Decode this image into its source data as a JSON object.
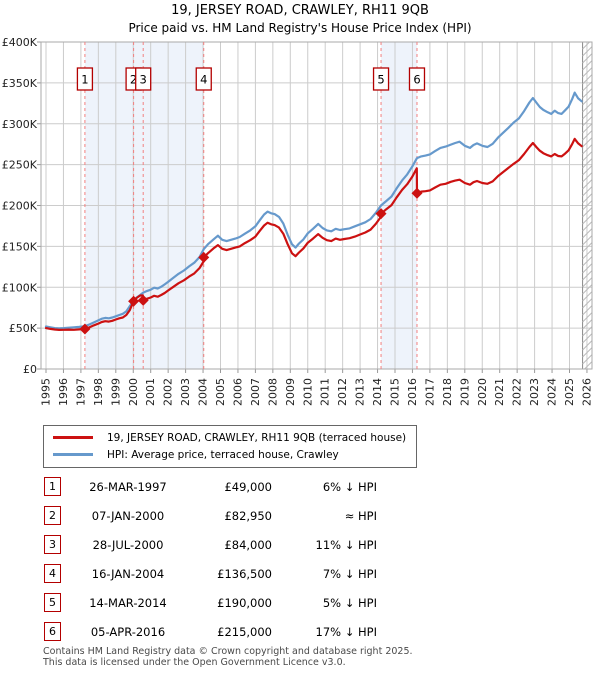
{
  "title": "19, JERSEY ROAD, CRAWLEY, RH11 9QB",
  "subtitle": "Price paid vs. HM Land Registry's House Price Index (HPI)",
  "legend": {
    "items": [
      {
        "label": "19, JERSEY ROAD, CRAWLEY, RH11 9QB (terraced house)",
        "color": "#cc1111"
      },
      {
        "label": "HPI: Average price, terraced house, Crawley",
        "color": "#6699cc"
      }
    ]
  },
  "chart_data": {
    "type": "line",
    "unit": "GBP_thousands",
    "x_axis": {
      "range": [
        1994.71,
        2026.3
      ],
      "tick_labels": [
        "1995",
        "1996",
        "1997",
        "1998",
        "1999",
        "2000",
        "2001",
        "2002",
        "2003",
        "2004",
        "2005",
        "2006",
        "2007",
        "2008",
        "2009",
        "2010",
        "2011",
        "2012",
        "2013",
        "2014",
        "2015",
        "2016",
        "2017",
        "2018",
        "2019",
        "2020",
        "2021",
        "2022",
        "2023",
        "2024",
        "2025",
        "2026"
      ]
    },
    "y_axis": {
      "range_thousands": [
        0,
        400
      ],
      "ticks": [
        {
          "v": 0,
          "label": "£0"
        },
        {
          "v": 50,
          "label": "£50K"
        },
        {
          "v": 100,
          "label": "£100K"
        },
        {
          "v": 150,
          "label": "£150K"
        },
        {
          "v": 200,
          "label": "£200K"
        },
        {
          "v": 250,
          "label": "£250K"
        },
        {
          "v": 300,
          "label": "£300K"
        },
        {
          "v": 350,
          "label": "£350K"
        },
        {
          "v": 400,
          "label": "£400K"
        }
      ]
    },
    "grid": true,
    "ownership_bands": [
      [
        1997.23,
        2004.04
      ],
      [
        2014.2,
        2016.26
      ]
    ],
    "future_hatch_start": 2025.75,
    "colors": {
      "property": "#cc1111",
      "hpi": "#6699cc",
      "band": "#eef3fb",
      "sale_line": "#f28080",
      "grid": "#cccccc",
      "border": "#aaaaaa",
      "box_border": "#b30000"
    },
    "series": [
      {
        "name": "hpi",
        "color": "#6699cc",
        "points": [
          [
            1995.0,
            52
          ],
          [
            1995.25,
            51
          ],
          [
            1995.5,
            50
          ],
          [
            1995.75,
            49.8
          ],
          [
            1996.0,
            50
          ],
          [
            1996.3,
            50.5
          ],
          [
            1996.6,
            51
          ],
          [
            1996.9,
            51.5
          ],
          [
            1997.23,
            52.3
          ],
          [
            1997.5,
            54.5
          ],
          [
            1997.75,
            57
          ],
          [
            1998.0,
            59.5
          ],
          [
            1998.2,
            61.5
          ],
          [
            1998.4,
            62.5
          ],
          [
            1998.6,
            62
          ],
          [
            1998.8,
            63
          ],
          [
            1999.0,
            64.5
          ],
          [
            1999.2,
            66
          ],
          [
            1999.4,
            67.5
          ],
          [
            1999.6,
            70.5
          ],
          [
            1999.8,
            77
          ],
          [
            2000.02,
            83.5
          ],
          [
            2000.2,
            87.5
          ],
          [
            2000.4,
            90.5
          ],
          [
            2000.57,
            93.5
          ],
          [
            2000.8,
            95.5
          ],
          [
            2001.0,
            97
          ],
          [
            2001.2,
            99.5
          ],
          [
            2001.4,
            98.5
          ],
          [
            2001.6,
            100.5
          ],
          [
            2001.8,
            103.5
          ],
          [
            2002.0,
            106.5
          ],
          [
            2002.3,
            111.5
          ],
          [
            2002.6,
            116.5
          ],
          [
            2002.9,
            120.5
          ],
          [
            2003.2,
            125.5
          ],
          [
            2003.5,
            130
          ],
          [
            2003.8,
            137
          ],
          [
            2004.04,
            146.5
          ],
          [
            2004.3,
            153
          ],
          [
            2004.6,
            158.5
          ],
          [
            2004.85,
            163
          ],
          [
            2005.1,
            158
          ],
          [
            2005.35,
            156.5
          ],
          [
            2005.6,
            158
          ],
          [
            2005.85,
            159.5
          ],
          [
            2006.1,
            161.5
          ],
          [
            2006.4,
            165.5
          ],
          [
            2006.7,
            169.5
          ],
          [
            2007.0,
            174.5
          ],
          [
            2007.25,
            182
          ],
          [
            2007.5,
            189
          ],
          [
            2007.7,
            192.5
          ],
          [
            2007.9,
            190.5
          ],
          [
            2008.1,
            189.5
          ],
          [
            2008.35,
            186
          ],
          [
            2008.6,
            178
          ],
          [
            2008.85,
            164
          ],
          [
            2009.1,
            152.5
          ],
          [
            2009.3,
            148.5
          ],
          [
            2009.5,
            153.5
          ],
          [
            2009.75,
            158.5
          ],
          [
            2010.0,
            166
          ],
          [
            2010.3,
            171.5
          ],
          [
            2010.6,
            177.5
          ],
          [
            2010.85,
            172.5
          ],
          [
            2011.1,
            169.5
          ],
          [
            2011.35,
            168.5
          ],
          [
            2011.6,
            171.5
          ],
          [
            2011.85,
            170
          ],
          [
            2012.1,
            171
          ],
          [
            2012.4,
            172
          ],
          [
            2012.7,
            174.5
          ],
          [
            2013.0,
            177
          ],
          [
            2013.3,
            179.5
          ],
          [
            2013.6,
            183.5
          ],
          [
            2013.9,
            191
          ],
          [
            2014.2,
            200
          ],
          [
            2014.5,
            205.5
          ],
          [
            2014.8,
            211
          ],
          [
            2015.1,
            221
          ],
          [
            2015.4,
            230.5
          ],
          [
            2015.7,
            238
          ],
          [
            2016.0,
            248
          ],
          [
            2016.26,
            258
          ],
          [
            2016.5,
            260
          ],
          [
            2016.75,
            261
          ],
          [
            2017.0,
            262.5
          ],
          [
            2017.3,
            266.5
          ],
          [
            2017.6,
            270.5
          ],
          [
            2017.9,
            272
          ],
          [
            2018.2,
            274.5
          ],
          [
            2018.45,
            276.5
          ],
          [
            2018.7,
            278
          ],
          [
            2019.0,
            273
          ],
          [
            2019.3,
            270.5
          ],
          [
            2019.5,
            274
          ],
          [
            2019.7,
            276
          ],
          [
            2020.0,
            273
          ],
          [
            2020.3,
            271.5
          ],
          [
            2020.6,
            275.5
          ],
          [
            2020.9,
            283
          ],
          [
            2021.2,
            289
          ],
          [
            2021.5,
            295
          ],
          [
            2021.8,
            301.5
          ],
          [
            2022.1,
            306.5
          ],
          [
            2022.4,
            315.5
          ],
          [
            2022.7,
            326
          ],
          [
            2022.9,
            331.5
          ],
          [
            2023.1,
            326
          ],
          [
            2023.3,
            320.5
          ],
          [
            2023.5,
            317
          ],
          [
            2023.75,
            314
          ],
          [
            2023.95,
            312
          ],
          [
            2024.15,
            316
          ],
          [
            2024.35,
            313
          ],
          [
            2024.55,
            312
          ],
          [
            2024.75,
            316.5
          ],
          [
            2024.95,
            321
          ],
          [
            2025.15,
            330
          ],
          [
            2025.3,
            338
          ],
          [
            2025.5,
            331
          ],
          [
            2025.7,
            327.5
          ]
        ]
      },
      {
        "name": "property",
        "color": "#cc1111",
        "points": [
          [
            1995.0,
            50
          ],
          [
            1995.25,
            49
          ],
          [
            1995.5,
            48.3
          ],
          [
            1995.75,
            47.8
          ],
          [
            1996.0,
            48
          ],
          [
            1996.3,
            48.2
          ],
          [
            1996.6,
            48
          ],
          [
            1996.9,
            48.4
          ],
          [
            1997.23,
            49
          ],
          [
            1997.5,
            51
          ],
          [
            1997.75,
            53.5
          ],
          [
            1998.0,
            55.5
          ],
          [
            1998.2,
            57.5
          ],
          [
            1998.4,
            58.5
          ],
          [
            1998.6,
            58
          ],
          [
            1998.8,
            59
          ],
          [
            1999.0,
            60.5
          ],
          [
            1999.2,
            62
          ],
          [
            1999.4,
            63
          ],
          [
            1999.6,
            66
          ],
          [
            1999.8,
            72
          ],
          [
            2000.02,
            83
          ],
          [
            2000.2,
            87
          ],
          [
            2000.4,
            89.9
          ],
          [
            2000.55,
            89.9
          ],
          [
            2000.57,
            84
          ],
          [
            2000.8,
            86
          ],
          [
            2001.0,
            87.5
          ],
          [
            2001.2,
            89.5
          ],
          [
            2001.4,
            88.5
          ],
          [
            2001.6,
            90.5
          ],
          [
            2001.8,
            93
          ],
          [
            2002.0,
            96
          ],
          [
            2002.3,
            100.5
          ],
          [
            2002.6,
            105
          ],
          [
            2002.9,
            108.5
          ],
          [
            2003.2,
            113
          ],
          [
            2003.5,
            117
          ],
          [
            2003.8,
            123.5
          ],
          [
            2004.03,
            131.5
          ],
          [
            2004.04,
            136.5
          ],
          [
            2004.3,
            142
          ],
          [
            2004.6,
            147.5
          ],
          [
            2004.85,
            151.5
          ],
          [
            2005.1,
            147
          ],
          [
            2005.35,
            145.5
          ],
          [
            2005.6,
            147
          ],
          [
            2005.85,
            148.5
          ],
          [
            2006.1,
            150
          ],
          [
            2006.4,
            154
          ],
          [
            2006.7,
            157.5
          ],
          [
            2007.0,
            162
          ],
          [
            2007.25,
            169
          ],
          [
            2007.5,
            175.5
          ],
          [
            2007.7,
            179
          ],
          [
            2007.9,
            177
          ],
          [
            2008.1,
            176
          ],
          [
            2008.35,
            173
          ],
          [
            2008.6,
            165.5
          ],
          [
            2008.85,
            152.5
          ],
          [
            2009.1,
            141.5
          ],
          [
            2009.3,
            138
          ],
          [
            2009.5,
            142.5
          ],
          [
            2009.75,
            147.5
          ],
          [
            2010.0,
            154.5
          ],
          [
            2010.3,
            159.5
          ],
          [
            2010.6,
            165
          ],
          [
            2010.85,
            160.5
          ],
          [
            2011.1,
            157.5
          ],
          [
            2011.35,
            156.5
          ],
          [
            2011.6,
            159.5
          ],
          [
            2011.85,
            158
          ],
          [
            2012.1,
            159
          ],
          [
            2012.4,
            160
          ],
          [
            2012.7,
            162
          ],
          [
            2013.0,
            164.5
          ],
          [
            2013.3,
            167
          ],
          [
            2013.6,
            170.5
          ],
          [
            2013.9,
            177.5
          ],
          [
            2014.19,
            186
          ],
          [
            2014.2,
            190
          ],
          [
            2014.5,
            195.5
          ],
          [
            2014.8,
            200.5
          ],
          [
            2015.1,
            210
          ],
          [
            2015.4,
            219
          ],
          [
            2015.7,
            226
          ],
          [
            2016.0,
            235.5
          ],
          [
            2016.25,
            245.5
          ],
          [
            2016.26,
            215
          ],
          [
            2016.5,
            217
          ],
          [
            2016.75,
            217.5
          ],
          [
            2017.0,
            218.5
          ],
          [
            2017.3,
            222
          ],
          [
            2017.6,
            225.5
          ],
          [
            2017.9,
            226.5
          ],
          [
            2018.2,
            229
          ],
          [
            2018.45,
            230.5
          ],
          [
            2018.7,
            231.5
          ],
          [
            2019.0,
            227.5
          ],
          [
            2019.3,
            225.5
          ],
          [
            2019.5,
            228.5
          ],
          [
            2019.7,
            230
          ],
          [
            2020.0,
            227.5
          ],
          [
            2020.3,
            226.5
          ],
          [
            2020.6,
            229.5
          ],
          [
            2020.9,
            236
          ],
          [
            2021.2,
            241
          ],
          [
            2021.5,
            246
          ],
          [
            2021.8,
            251
          ],
          [
            2022.1,
            255.5
          ],
          [
            2022.4,
            263
          ],
          [
            2022.7,
            271.5
          ],
          [
            2022.9,
            276.5
          ],
          [
            2023.1,
            271.5
          ],
          [
            2023.3,
            267
          ],
          [
            2023.5,
            264
          ],
          [
            2023.75,
            261.5
          ],
          [
            2023.95,
            260
          ],
          [
            2024.15,
            263
          ],
          [
            2024.35,
            260.5
          ],
          [
            2024.55,
            260
          ],
          [
            2024.75,
            263.5
          ],
          [
            2024.95,
            267.5
          ],
          [
            2025.15,
            275
          ],
          [
            2025.3,
            281.5
          ],
          [
            2025.5,
            276
          ],
          [
            2025.7,
            272.5
          ]
        ]
      }
    ],
    "sales": [
      {
        "n": "1",
        "x": 1997.23,
        "value_thousands": 49
      },
      {
        "n": "2",
        "x": 2000.02,
        "value_thousands": 82.95
      },
      {
        "n": "3",
        "x": 2000.57,
        "value_thousands": 84
      },
      {
        "n": "4",
        "x": 2004.04,
        "value_thousands": 136.5
      },
      {
        "n": "5",
        "x": 2014.2,
        "value_thousands": 190
      },
      {
        "n": "6",
        "x": 2016.26,
        "value_thousands": 215
      }
    ]
  },
  "table": {
    "rows": [
      {
        "num": "1",
        "date": "26-MAR-1997",
        "price": "£49,000",
        "diff": "6% ↓ HPI"
      },
      {
        "num": "2",
        "date": "07-JAN-2000",
        "price": "£82,950",
        "diff": "≈ HPI"
      },
      {
        "num": "3",
        "date": "28-JUL-2000",
        "price": "£84,000",
        "diff": "11% ↓ HPI"
      },
      {
        "num": "4",
        "date": "16-JAN-2004",
        "price": "£136,500",
        "diff": "7% ↓ HPI"
      },
      {
        "num": "5",
        "date": "14-MAR-2014",
        "price": "£190,000",
        "diff": "5% ↓ HPI"
      },
      {
        "num": "6",
        "date": "05-APR-2016",
        "price": "£215,000",
        "diff": "17% ↓ HPI"
      }
    ]
  },
  "footer": {
    "line1": "Contains HM Land Registry data © Crown copyright and database right 2025.",
    "line2": "This data is licensed under the Open Government Licence v3.0."
  }
}
